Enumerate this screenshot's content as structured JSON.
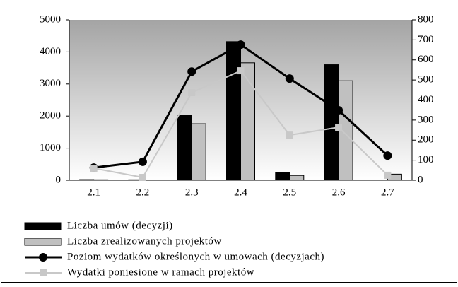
{
  "chart_data": {
    "type": "bar",
    "categories": [
      "2.1",
      "2.2",
      "2.3",
      "2.4",
      "2.5",
      "2.6",
      "2.7"
    ],
    "series": [
      {
        "name": "Liczba umów (decyzji)",
        "type": "bar",
        "color": "#000000",
        "values": [
          20,
          15,
          2020,
          4320,
          250,
          3600,
          10
        ]
      },
      {
        "name": "Liczba zrealizowanych projektów",
        "type": "bar",
        "color": "#c0c0c0",
        "values": [
          15,
          10,
          1760,
          3660,
          150,
          3100,
          190
        ]
      },
      {
        "name": "Poziom wydatków określonych w umowach (decyzjach)",
        "type": "line",
        "axis": "y2",
        "color": "#000000",
        "values": [
          63,
          92,
          542,
          676,
          507,
          349,
          123
        ]
      },
      {
        "name": "Wydatki poniesione w ramach projektów",
        "type": "line",
        "axis": "y2",
        "color": "#c8c8c8",
        "values": [
          60,
          14,
          437,
          546,
          225,
          264,
          25
        ]
      }
    ],
    "ylim": [
      0,
      5000
    ],
    "yticks": [
      0,
      1000,
      2000,
      3000,
      4000,
      5000
    ],
    "y2lim": [
      0,
      800
    ],
    "y2ticks": [
      0,
      100,
      200,
      300,
      400,
      500,
      600,
      700,
      800
    ],
    "legend": "bottom"
  }
}
